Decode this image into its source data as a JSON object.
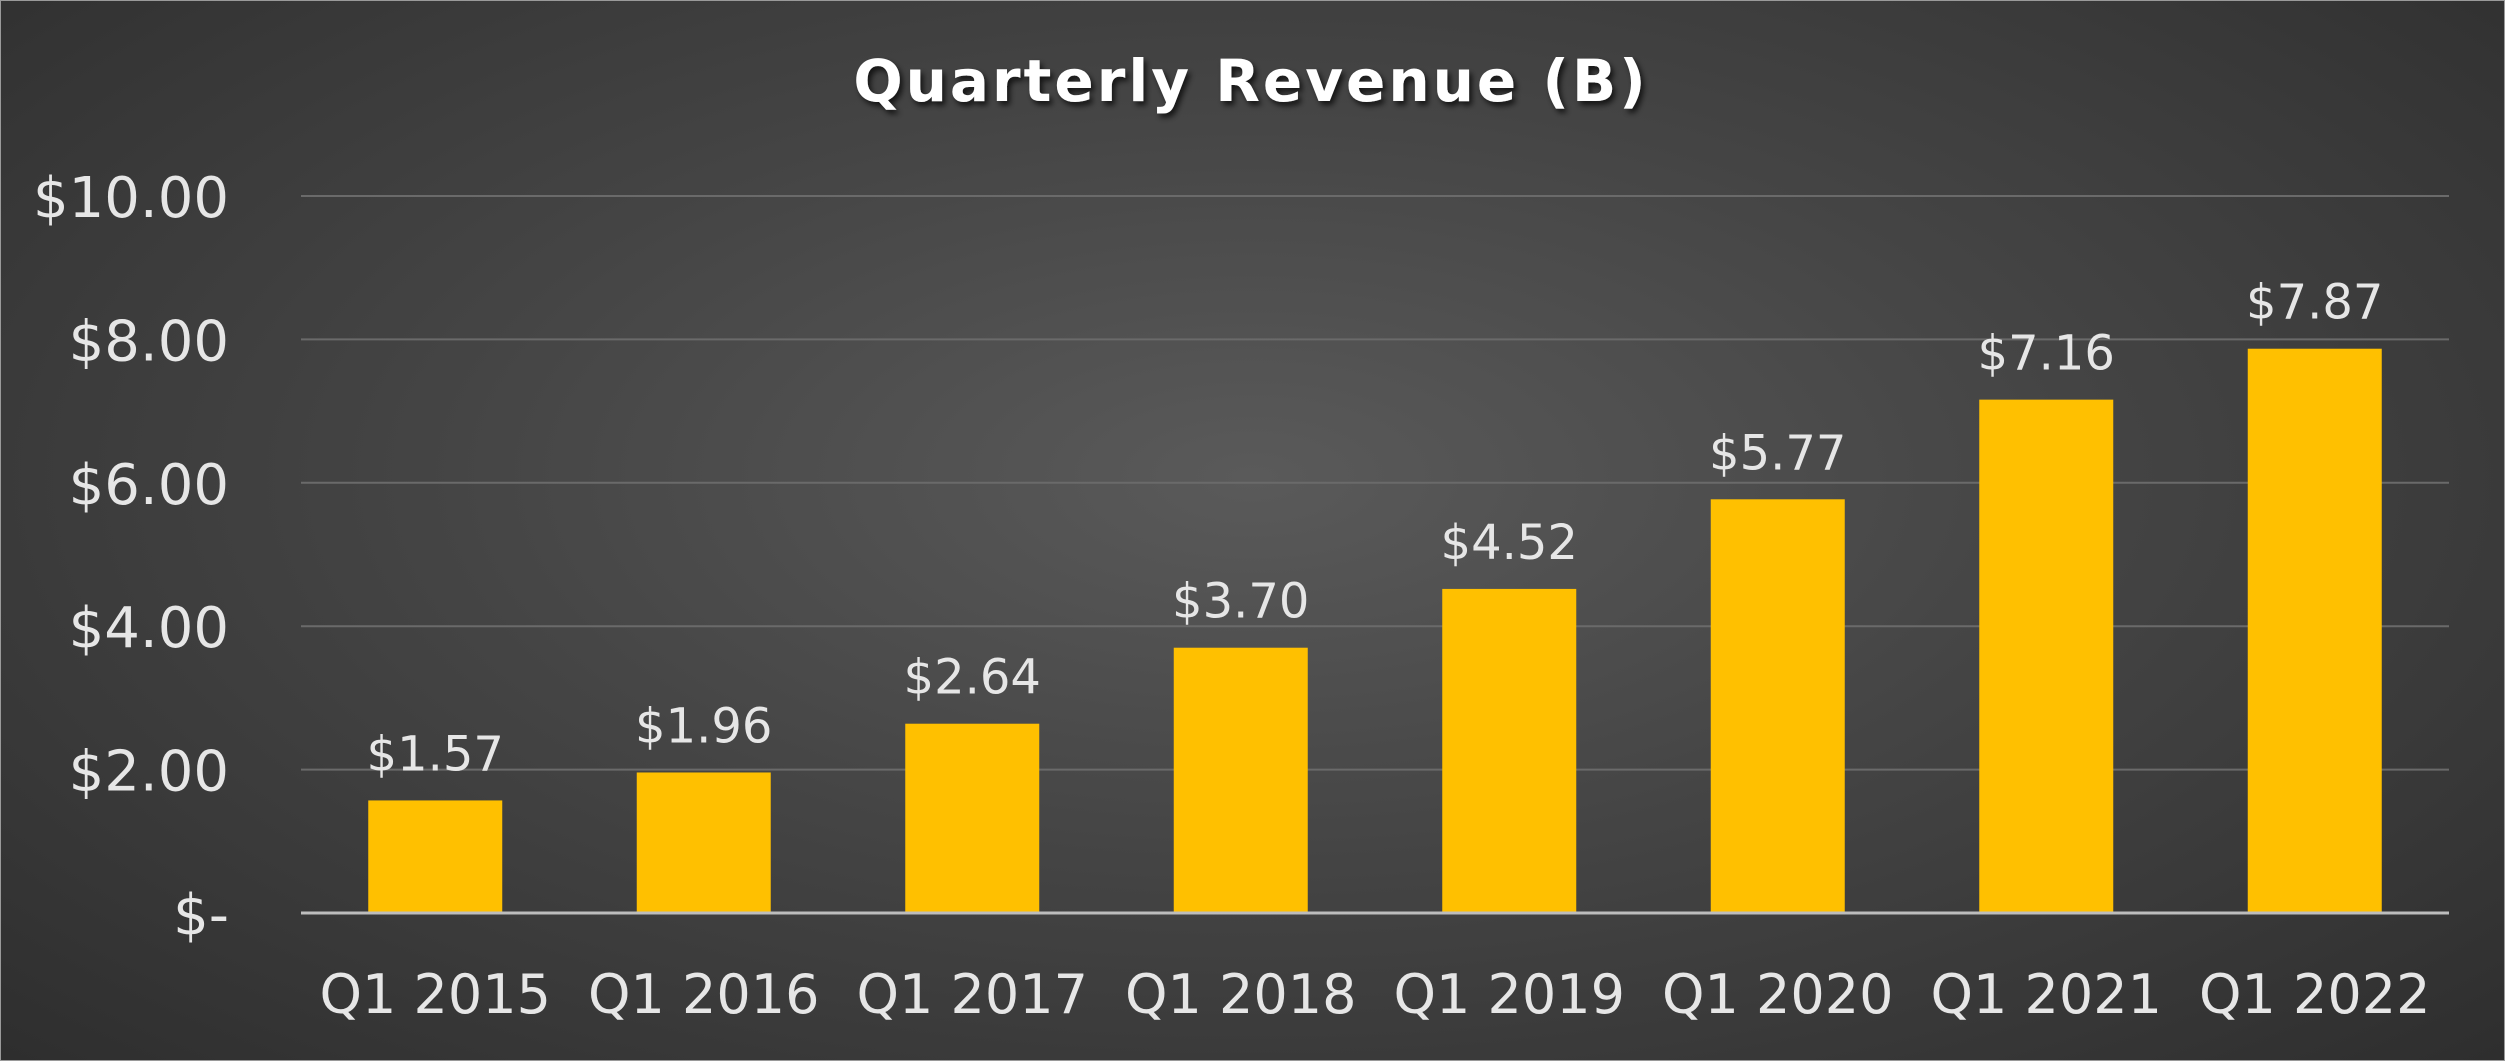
{
  "chart_data": {
    "type": "bar",
    "title": "Quarterly Revenue (B)",
    "xlabel": "",
    "ylabel": "",
    "categories": [
      "Q1 2015",
      "Q1 2016",
      "Q1 2017",
      "Q1 2018",
      "Q1 2019",
      "Q1 2020",
      "Q1 2021",
      "Q1 2022"
    ],
    "values": [
      1.57,
      1.96,
      2.64,
      3.7,
      4.52,
      5.77,
      7.16,
      7.87
    ],
    "data_labels": [
      "$1.57",
      "$1.96",
      "$2.64",
      "$3.70",
      "$4.52",
      "$5.77",
      "$7.16",
      "$7.87"
    ],
    "ylim": [
      0,
      10
    ],
    "y_ticks": [
      0,
      2,
      4,
      6,
      8,
      10
    ],
    "y_tick_labels": [
      "$-",
      "$2.00",
      "$4.00",
      "$6.00",
      "$8.00",
      "$10.00"
    ],
    "grid": true,
    "legend": "none",
    "colors": {
      "bar": "#FFC000",
      "text": "#E6E6E6",
      "title": "#FFFFFF",
      "grid": "#6A6A6A",
      "axis": "#BDBDBD"
    }
  }
}
